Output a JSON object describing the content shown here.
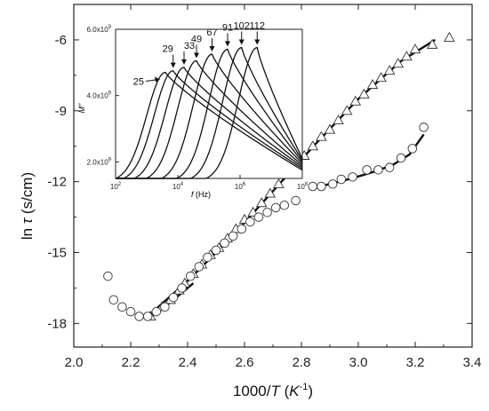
{
  "chart_data": [
    {
      "type": "scatter",
      "xlabel_prefix": "1000/",
      "xlabel_var": "T",
      "xlabel_unit": "K",
      "xlabel_exp": "-1",
      "ylabel_prefix": "ln ",
      "ylabel_var": "τ",
      "ylabel_unit": "(s/cm)",
      "xlim": [
        2.0,
        3.4
      ],
      "ylim": [
        -19.0,
        -4.5
      ],
      "xticks": [
        "2.0",
        "2.2",
        "2.4",
        "2.6",
        "2.8",
        "3.0",
        "3.2",
        "3.4"
      ],
      "yticks": [
        "-6",
        "-9",
        "-12",
        "-15",
        "-18"
      ],
      "series": [
        {
          "marker": "triangle",
          "points": [
            [
              2.27,
              -17.7
            ],
            [
              2.31,
              -17.3
            ],
            [
              2.34,
              -17.0
            ],
            [
              2.37,
              -16.6
            ],
            [
              2.39,
              -16.3
            ],
            [
              2.42,
              -15.9
            ],
            [
              2.45,
              -15.5
            ],
            [
              2.48,
              -15.1
            ],
            [
              2.51,
              -14.8
            ],
            [
              2.54,
              -14.4
            ],
            [
              2.57,
              -14.0
            ],
            [
              2.6,
              -13.6
            ],
            [
              2.63,
              -13.3
            ],
            [
              2.66,
              -12.9
            ],
            [
              2.69,
              -12.5
            ],
            [
              2.72,
              -12.1
            ],
            [
              2.75,
              -11.7
            ],
            [
              2.78,
              -11.3
            ],
            [
              2.81,
              -10.9
            ],
            [
              2.84,
              -10.5
            ],
            [
              2.87,
              -10.1
            ],
            [
              2.9,
              -9.8
            ],
            [
              2.93,
              -9.4
            ],
            [
              2.96,
              -9.0
            ],
            [
              2.99,
              -8.6
            ],
            [
              3.02,
              -8.3
            ],
            [
              3.05,
              -7.9
            ],
            [
              3.08,
              -7.6
            ],
            [
              3.11,
              -7.3
            ],
            [
              3.14,
              -7.0
            ],
            [
              3.17,
              -6.7
            ],
            [
              3.2,
              -6.4
            ],
            [
              3.26,
              -6.2
            ],
            [
              3.32,
              -5.9
            ]
          ]
        },
        {
          "marker": "circle",
          "points": [
            [
              2.12,
              -16.0
            ],
            [
              2.14,
              -17.0
            ],
            [
              2.17,
              -17.3
            ],
            [
              2.2,
              -17.5
            ],
            [
              2.23,
              -17.7
            ],
            [
              2.26,
              -17.7
            ],
            [
              2.29,
              -17.5
            ],
            [
              2.32,
              -17.3
            ],
            [
              2.35,
              -16.9
            ],
            [
              2.38,
              -16.5
            ],
            [
              2.41,
              -16.0
            ],
            [
              2.44,
              -15.6
            ],
            [
              2.47,
              -15.2
            ],
            [
              2.5,
              -14.9
            ],
            [
              2.53,
              -14.6
            ],
            [
              2.56,
              -14.3
            ],
            [
              2.59,
              -14.0
            ],
            [
              2.62,
              -13.7
            ],
            [
              2.65,
              -13.5
            ],
            [
              2.68,
              -13.3
            ],
            [
              2.71,
              -13.1
            ],
            [
              2.74,
              -13.0
            ],
            [
              2.78,
              -12.8
            ],
            [
              2.84,
              -12.2
            ],
            [
              2.87,
              -12.2
            ],
            [
              2.91,
              -12.1
            ],
            [
              2.94,
              -11.9
            ],
            [
              2.98,
              -11.8
            ],
            [
              3.03,
              -11.5
            ],
            [
              3.07,
              -11.5
            ],
            [
              3.11,
              -11.4
            ],
            [
              3.15,
              -11.0
            ],
            [
              3.19,
              -10.6
            ],
            [
              3.23,
              -9.7
            ]
          ]
        }
      ],
      "fit_lines": [
        {
          "points": [
            [
              2.25,
              -17.8
            ],
            [
              2.4,
              -16.2
            ],
            [
              2.55,
              -14.4
            ],
            [
              2.7,
              -12.4
            ],
            [
              2.85,
              -10.4
            ],
            [
              3.0,
              -8.5
            ],
            [
              3.15,
              -6.9
            ],
            [
              3.27,
              -6.0
            ]
          ]
        },
        {
          "points": [
            [
              2.26,
              -17.8
            ],
            [
              2.3,
              -17.45
            ],
            [
              2.34,
              -17.1
            ],
            [
              2.38,
              -16.7
            ],
            [
              2.42,
              -16.3
            ]
          ]
        },
        {
          "points": [
            [
              2.83,
              -12.3
            ],
            [
              2.9,
              -12.1
            ],
            [
              2.98,
              -11.85
            ],
            [
              3.05,
              -11.6
            ],
            [
              3.12,
              -11.3
            ],
            [
              3.18,
              -10.85
            ],
            [
              3.23,
              -10.0
            ]
          ]
        }
      ]
    },
    {
      "type": "line",
      "ylabel": "M\"",
      "xlabel_var": "f",
      "xlabel_unit": "(Hz)",
      "xscale": "log",
      "xlim": [
        100,
        100000000
      ],
      "ylim": [
        1500000000,
        6000000000
      ],
      "xticks": [
        {
          "base": "10",
          "exp": "2",
          "value": 100
        },
        {
          "base": "10",
          "exp": "4",
          "value": 10000
        },
        {
          "base": "10",
          "exp": "6",
          "value": 1000000
        },
        {
          "base": "10",
          "exp": "8",
          "value": 100000000
        }
      ],
      "yticks": [
        {
          "label": "2.0x10",
          "exp": "9",
          "value": 2000000000
        },
        {
          "label": "4.0x10",
          "exp": "9",
          "value": 4000000000
        },
        {
          "label": "6.0x10",
          "exp": "9",
          "value": 6000000000
        }
      ],
      "peaks": [
        {
          "label": "25",
          "peak_log_f": 3.6,
          "peak_m": 4700000000
        },
        {
          "label": "29",
          "peak_log_f": 3.85,
          "peak_m": 4750000000
        },
        {
          "label": "33",
          "peak_log_f": 4.2,
          "peak_m": 4850000000
        },
        {
          "label": "49",
          "peak_log_f": 4.6,
          "peak_m": 5050000000
        },
        {
          "label": "67",
          "peak_log_f": 5.1,
          "peak_m": 5250000000
        },
        {
          "label": "91",
          "peak_log_f": 5.6,
          "peak_m": 5400000000
        },
        {
          "label": "102",
          "peak_log_f": 6.05,
          "peak_m": 5450000000
        },
        {
          "label": "112",
          "peak_log_f": 6.55,
          "peak_m": 5450000000
        }
      ]
    }
  ]
}
